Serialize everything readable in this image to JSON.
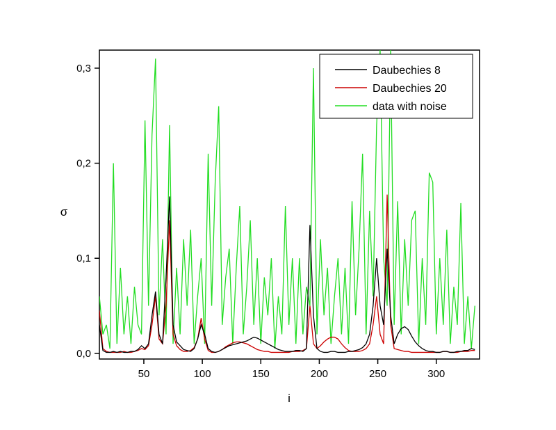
{
  "chart_data": {
    "type": "line",
    "x_label": "i",
    "y_label": "σ",
    "xlim": [
      12,
      337
    ],
    "ylim": [
      -0.006,
      0.319
    ],
    "xticks": [
      50,
      100,
      150,
      200,
      250,
      300
    ],
    "yticks": [
      {
        "value": 0,
        "label": "0,0"
      },
      {
        "value": 0.1,
        "label": "0,1"
      },
      {
        "value": 0.2,
        "label": "0,2"
      },
      {
        "value": 0.3,
        "label": "0,3"
      }
    ],
    "legend": "upper right",
    "x": [
      12,
      15,
      18,
      21,
      24,
      27,
      30,
      33,
      36,
      39,
      42,
      45,
      48,
      51,
      54,
      57,
      60,
      63,
      66,
      69,
      72,
      75,
      78,
      81,
      84,
      87,
      90,
      93,
      96,
      99,
      102,
      105,
      108,
      111,
      114,
      117,
      120,
      123,
      126,
      129,
      132,
      135,
      138,
      141,
      144,
      147,
      150,
      153,
      156,
      159,
      162,
      165,
      168,
      171,
      174,
      177,
      180,
      183,
      186,
      189,
      192,
      195,
      198,
      201,
      204,
      207,
      210,
      213,
      216,
      219,
      222,
      225,
      228,
      231,
      234,
      237,
      240,
      243,
      246,
      249,
      252,
      255,
      258,
      261,
      264,
      267,
      270,
      273,
      276,
      279,
      282,
      285,
      288,
      291,
      294,
      297,
      300,
      303,
      306,
      309,
      312,
      315,
      318,
      321,
      324,
      327,
      330,
      333
    ],
    "series": [
      {
        "name": "Daubechies 8",
        "color": "#000000",
        "values": [
          0.03,
          0.003,
          0.001,
          0.001,
          0.002,
          0.001,
          0.002,
          0.001,
          0.001,
          0.002,
          0.002,
          0.004,
          0.008,
          0.005,
          0.01,
          0.04,
          0.065,
          0.02,
          0.01,
          0.08,
          0.165,
          0.03,
          0.012,
          0.008,
          0.004,
          0.003,
          0.002,
          0.005,
          0.015,
          0.03,
          0.02,
          0.005,
          0.002,
          0.001,
          0.002,
          0.004,
          0.006,
          0.008,
          0.009,
          0.01,
          0.011,
          0.012,
          0.013,
          0.015,
          0.017,
          0.016,
          0.014,
          0.012,
          0.01,
          0.008,
          0.006,
          0.004,
          0.003,
          0.002,
          0.002,
          0.002,
          0.003,
          0.003,
          0.002,
          0.005,
          0.135,
          0.04,
          0.005,
          0.002,
          0.001,
          0.001,
          0.002,
          0.002,
          0.001,
          0.001,
          0.001,
          0.002,
          0.002,
          0.003,
          0.004,
          0.006,
          0.01,
          0.02,
          0.05,
          0.1,
          0.05,
          0.03,
          0.11,
          0.04,
          0.01,
          0.02,
          0.026,
          0.028,
          0.025,
          0.018,
          0.012,
          0.008,
          0.005,
          0.003,
          0.002,
          0.002,
          0.001,
          0.001,
          0.002,
          0.002,
          0.001,
          0.001,
          0.002,
          0.002,
          0.003,
          0.003,
          0.005,
          0.004
        ]
      },
      {
        "name": "Daubechies 20",
        "color": "#cc0000",
        "values": [
          0.045,
          0.005,
          0.002,
          0.001,
          0.001,
          0.001,
          0.001,
          0.002,
          0.001,
          0.001,
          0.002,
          0.003,
          0.005,
          0.004,
          0.008,
          0.03,
          0.06,
          0.015,
          0.01,
          0.05,
          0.14,
          0.02,
          0.008,
          0.004,
          0.002,
          0.002,
          0.003,
          0.006,
          0.015,
          0.037,
          0.015,
          0.003,
          0.001,
          0.001,
          0.002,
          0.004,
          0.007,
          0.009,
          0.011,
          0.012,
          0.012,
          0.011,
          0.01,
          0.008,
          0.006,
          0.004,
          0.003,
          0.002,
          0.002,
          0.001,
          0.001,
          0.001,
          0.001,
          0.001,
          0.001,
          0.002,
          0.002,
          0.002,
          0.003,
          0.005,
          0.05,
          0.01,
          0.005,
          0.008,
          0.012,
          0.015,
          0.017,
          0.017,
          0.015,
          0.01,
          0.006,
          0.003,
          0.002,
          0.002,
          0.002,
          0.003,
          0.005,
          0.01,
          0.03,
          0.06,
          0.02,
          0.01,
          0.167,
          0.03,
          0.005,
          0.004,
          0.003,
          0.002,
          0.002,
          0.001,
          0.001,
          0.001,
          0.001,
          0.001,
          0.001,
          0.001,
          0.001,
          0.001,
          0.002,
          0.002,
          0.001,
          0.001,
          0.001,
          0.002,
          0.002,
          0.002,
          0.003,
          0.003
        ]
      },
      {
        "name": "data with noise",
        "color": "#22dd22",
        "values": [
          0.06,
          0.02,
          0.03,
          0.005,
          0.2,
          0.01,
          0.09,
          0.02,
          0.06,
          0.01,
          0.07,
          0.03,
          0.02,
          0.245,
          0.05,
          0.23,
          0.31,
          0.04,
          0.12,
          0.02,
          0.24,
          0.01,
          0.09,
          0.02,
          0.12,
          0.05,
          0.13,
          0.01,
          0.06,
          0.1,
          0.01,
          0.21,
          0.05,
          0.18,
          0.26,
          0.03,
          0.08,
          0.11,
          0.01,
          0.09,
          0.155,
          0.02,
          0.07,
          0.14,
          0.03,
          0.1,
          0.01,
          0.08,
          0.04,
          0.1,
          0.005,
          0.06,
          0.02,
          0.155,
          0.03,
          0.1,
          0.01,
          0.1,
          0.02,
          0.07,
          0.05,
          0.3,
          0.02,
          0.12,
          0.04,
          0.09,
          0.01,
          0.06,
          0.1,
          0.02,
          0.09,
          0.01,
          0.16,
          0.04,
          0.11,
          0.21,
          0.02,
          0.15,
          0.06,
          0.24,
          0.32,
          0.1,
          0.05,
          0.32,
          0.03,
          0.16,
          0.02,
          0.12,
          0.05,
          0.14,
          0.15,
          0.01,
          0.1,
          0.03,
          0.19,
          0.18,
          0.02,
          0.1,
          0.03,
          0.13,
          0.01,
          0.07,
          0.03,
          0.158,
          0.01,
          0.06,
          0.005,
          0.05
        ]
      }
    ]
  }
}
